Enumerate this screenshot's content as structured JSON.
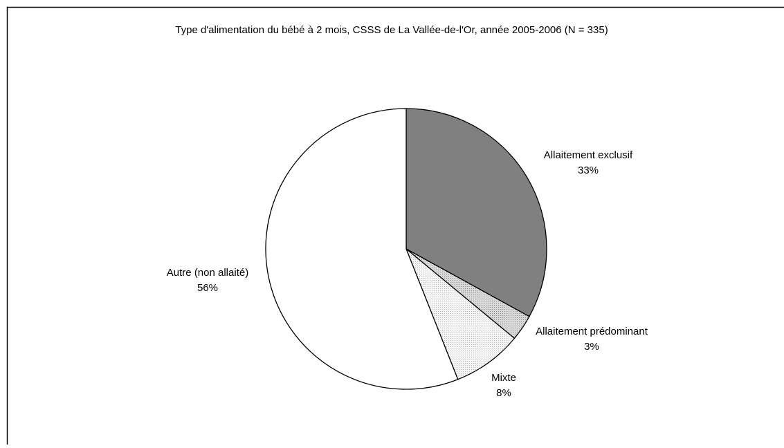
{
  "chart_data": {
    "type": "pie",
    "title": "Type d'alimentation du bébé à 2 mois, CSSS de La Vallée-de-l'Or, année 2005-2006  (N = 335)",
    "categories": [
      "Allaitement exclusif",
      "Allaitement prédominant",
      "Mixte",
      "Autre (non allaité)"
    ],
    "values": [
      33,
      3,
      8,
      56
    ],
    "value_labels": [
      "33%",
      "3%",
      "8%",
      "56%"
    ],
    "colors": [
      "#808080",
      "#c4c4c4",
      "#ececec",
      "#ffffff"
    ]
  }
}
